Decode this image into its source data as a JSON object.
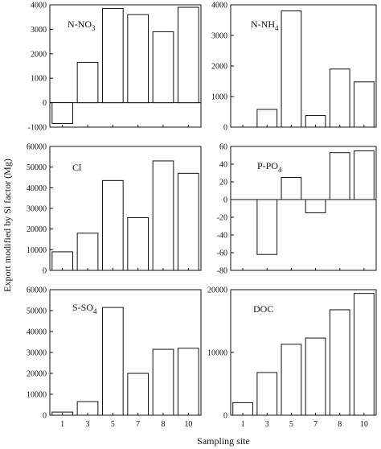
{
  "figure": {
    "ylabel": "Export modified by Si factor (Mg)",
    "xlabel": "Sampling site"
  },
  "chart_data": [
    {
      "type": "bar",
      "panel_label": "N-NO",
      "panel_label_sub": "3",
      "categories": [
        "1",
        "3",
        "5",
        "7",
        "8",
        "10"
      ],
      "values": [
        -850,
        1650,
        3850,
        3600,
        2900,
        3900
      ],
      "ylim": [
        -1000,
        4000
      ],
      "yticks": [
        -1000,
        0,
        1000,
        2000,
        3000,
        4000
      ],
      "show_x_ticklabels": false
    },
    {
      "type": "bar",
      "panel_label": "N-NH",
      "panel_label_sub": "4",
      "categories": [
        "1",
        "3",
        "5",
        "7",
        "8",
        "10"
      ],
      "values": [
        0,
        580,
        3800,
        380,
        1900,
        1480
      ],
      "ylim": [
        0,
        4000
      ],
      "yticks": [
        0,
        1000,
        2000,
        3000,
        4000
      ],
      "show_x_ticklabels": false
    },
    {
      "type": "bar",
      "panel_label": "Cl",
      "panel_label_sub": "",
      "categories": [
        "1",
        "3",
        "5",
        "7",
        "8",
        "10"
      ],
      "values": [
        9000,
        18000,
        43500,
        25500,
        53000,
        47000
      ],
      "ylim": [
        0,
        60000
      ],
      "yticks": [
        0,
        10000,
        20000,
        30000,
        40000,
        50000,
        60000
      ],
      "show_x_ticklabels": false
    },
    {
      "type": "bar",
      "panel_label": "P-PO",
      "panel_label_sub": "4",
      "categories": [
        "1",
        "3",
        "5",
        "7",
        "8",
        "10"
      ],
      "values": [
        0,
        -62,
        25,
        -15,
        53,
        55
      ],
      "ylim": [
        -80,
        60
      ],
      "yticks": [
        -80,
        -60,
        -40,
        -20,
        0,
        20,
        40,
        60
      ],
      "show_x_ticklabels": false
    },
    {
      "type": "bar",
      "panel_label": "S-SO",
      "panel_label_sub": "4",
      "categories": [
        "1",
        "3",
        "5",
        "7",
        "8",
        "10"
      ],
      "values": [
        1500,
        6500,
        51500,
        20000,
        31500,
        32000
      ],
      "ylim": [
        0,
        60000
      ],
      "yticks": [
        0,
        10000,
        20000,
        30000,
        40000,
        50000,
        60000
      ],
      "show_x_ticklabels": true
    },
    {
      "type": "bar",
      "panel_label": "DOC",
      "panel_label_sub": "",
      "categories": [
        "1",
        "3",
        "5",
        "7",
        "8",
        "10"
      ],
      "values": [
        2000,
        6800,
        11300,
        12300,
        16800,
        19400
      ],
      "ylim": [
        0,
        20000
      ],
      "yticks": [
        0,
        10000,
        20000
      ],
      "show_x_ticklabels": true
    }
  ]
}
